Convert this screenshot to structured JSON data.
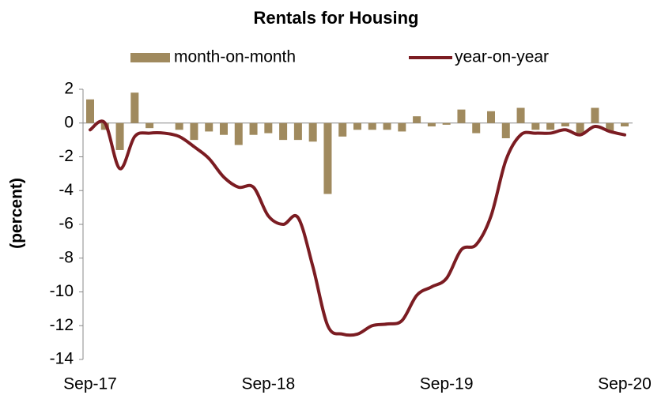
{
  "chart_data": {
    "type": "bar_line",
    "title": "Rentals for Housing",
    "y_label": "(percent)",
    "categories": [
      "Sep-17",
      null,
      null,
      null,
      null,
      null,
      null,
      null,
      null,
      null,
      null,
      null,
      "Sep-18",
      null,
      null,
      null,
      null,
      null,
      null,
      null,
      null,
      null,
      null,
      null,
      "Sep-19",
      null,
      null,
      null,
      null,
      null,
      null,
      null,
      null,
      null,
      null,
      null,
      "Sep-20"
    ],
    "series": [
      {
        "name": "month-on-month",
        "kind": "bar",
        "color": "#a08a5e",
        "values": [
          1.4,
          -0.4,
          -1.6,
          1.8,
          -0.3,
          0,
          -0.4,
          -1.0,
          -0.5,
          -0.7,
          -1.3,
          -0.7,
          -0.6,
          -1.0,
          -1.0,
          -1.1,
          -4.2,
          -0.8,
          -0.4,
          -0.4,
          -0.4,
          -0.5,
          0.4,
          -0.2,
          -0.1,
          0.8,
          -0.6,
          0.7,
          -0.9,
          0.9,
          -0.4,
          -0.4,
          -0.2,
          -0.7,
          0.9,
          -0.5,
          -0.2
        ]
      },
      {
        "name": "year-on-year",
        "kind": "line",
        "color": "#7b1c22",
        "values": [
          -0.4,
          0.0,
          -2.7,
          -0.8,
          -0.6,
          -0.6,
          -0.8,
          -1.4,
          -2.1,
          -3.2,
          -3.8,
          -3.8,
          -5.5,
          -6.0,
          -5.6,
          -8.5,
          -12.0,
          -12.5,
          -12.5,
          -12.0,
          -11.9,
          -11.7,
          -10.2,
          -9.7,
          -9.2,
          -7.5,
          -7.2,
          -5.5,
          -2.2,
          -0.7,
          -0.6,
          -0.6,
          -0.4,
          -0.7,
          -0.2,
          -0.5,
          -0.7
        ]
      }
    ],
    "ylim": [
      -14,
      2
    ],
    "yticks": [
      2,
      0,
      -2,
      -4,
      -6,
      -8,
      -10,
      -12,
      -14
    ],
    "legend": "top"
  }
}
